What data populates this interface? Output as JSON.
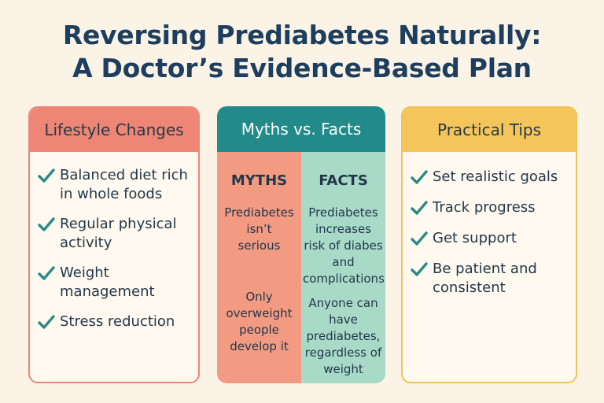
{
  "title": {
    "line1": "Reversing Prediabetes Naturally:",
    "line2": "A Doctor’s Evidence-Based Plan"
  },
  "lifestyle": {
    "heading": "Lifestyle Changes",
    "items": [
      {
        "line1": "Balanced diet rich",
        "line2": "in whole foods"
      },
      {
        "line1": "Regular physical",
        "line2": "activity"
      },
      {
        "line1": "Weight",
        "line2": "management"
      },
      {
        "line1": "Stress reduction",
        "line2": ""
      }
    ]
  },
  "myths_facts": {
    "heading": "Myths vs. Facts",
    "myths_label": "MYTHS",
    "facts_label": "FACTS",
    "myths": [
      [
        "Prediabetes",
        "isn’t",
        "serious"
      ],
      [
        "Only",
        "overweight",
        "people",
        "develop it"
      ]
    ],
    "facts": [
      [
        "Prediabetes",
        "increases",
        "risk of diabes",
        "and",
        "complications"
      ],
      [
        "Anyone can",
        "have",
        "prediabetes,",
        "regardless of",
        "weight"
      ]
    ]
  },
  "tips": {
    "heading": "Practical Tips",
    "items": [
      {
        "line1": "Set realistic goals",
        "line2": ""
      },
      {
        "line1": "Track progress",
        "line2": ""
      },
      {
        "line1": "Get support",
        "line2": ""
      },
      {
        "line1": "Be patient and",
        "line2": "consistent"
      }
    ]
  },
  "colors": {
    "lifestyle_accent": "#ee8676",
    "myths_facts_accent": "#238a8a",
    "tips_accent": "#f4c55a",
    "check": "#2a8b84"
  },
  "icons": {
    "check": "checkmark-icon"
  }
}
